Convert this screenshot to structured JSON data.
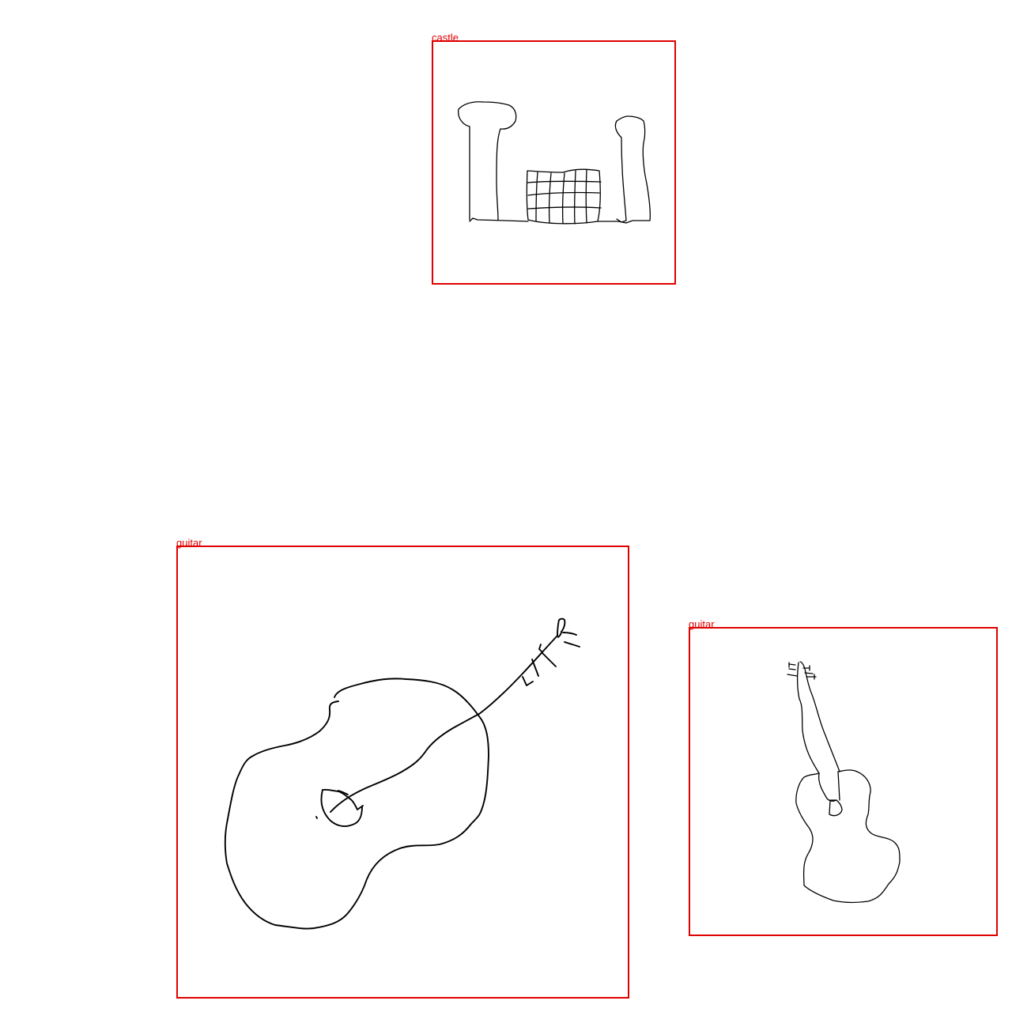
{
  "colors": {
    "box_stroke": "#e00000",
    "label": "#e00000",
    "sketch_stroke": "#000000",
    "background": "#ffffff"
  },
  "detections": [
    {
      "label": "castle"
    },
    {
      "label": "guitar"
    },
    {
      "label": "guitar"
    }
  ]
}
